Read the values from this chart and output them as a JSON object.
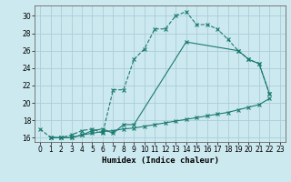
{
  "xlabel": "Humidex (Indice chaleur)",
  "ylabel": "",
  "bg_color": "#cde9f0",
  "grid_color": "#aacdd8",
  "line_color": "#1a7a6e",
  "xlim": [
    -0.5,
    23.5
  ],
  "ylim": [
    15.5,
    31.2
  ],
  "xticks": [
    0,
    1,
    2,
    3,
    4,
    5,
    6,
    7,
    8,
    9,
    10,
    11,
    12,
    13,
    14,
    15,
    16,
    17,
    18,
    19,
    20,
    21,
    22,
    23
  ],
  "yticks": [
    16,
    18,
    20,
    22,
    24,
    26,
    28,
    30
  ],
  "line1_x": [
    0,
    1,
    2,
    3,
    4,
    5,
    6,
    7,
    8,
    9,
    10,
    11,
    12,
    13,
    14,
    15,
    16,
    17,
    18,
    19,
    20,
    21,
    22
  ],
  "line1_y": [
    17,
    16,
    16,
    16.3,
    16.8,
    17,
    16.5,
    21.5,
    21.5,
    25,
    26.2,
    28.5,
    28.5,
    30,
    30.5,
    29,
    29,
    28.5,
    27.3,
    26,
    25,
    24.5,
    21
  ],
  "line2_x": [
    1,
    2,
    3,
    4,
    5,
    6,
    7,
    8,
    9,
    14,
    19,
    20,
    21,
    22
  ],
  "line2_y": [
    16,
    16,
    16,
    16.3,
    16.8,
    17,
    16.5,
    17.5,
    17.5,
    27,
    26,
    25,
    24.5,
    21
  ],
  "line3_x": [
    1,
    2,
    3,
    4,
    5,
    6,
    7,
    8,
    9,
    10,
    11,
    12,
    13,
    14,
    15,
    16,
    17,
    18,
    19,
    20,
    21,
    22
  ],
  "line3_y": [
    16,
    16,
    16,
    16.3,
    16.5,
    16.7,
    16.8,
    17,
    17.1,
    17.3,
    17.5,
    17.7,
    17.9,
    18.1,
    18.3,
    18.5,
    18.7,
    18.9,
    19.2,
    19.5,
    19.8,
    20.5
  ]
}
